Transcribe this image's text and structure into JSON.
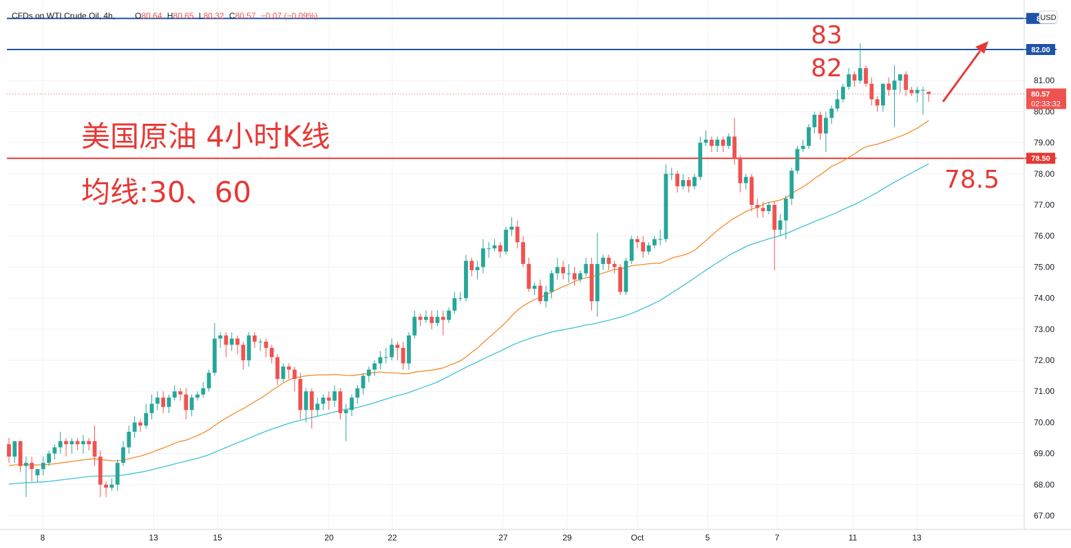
{
  "header": {
    "title": "CFDs on WTI Crude Oil, 4h,",
    "o_label": "O",
    "o": "80.64",
    "h_label": "H",
    "h": "80.65",
    "l_label": "L",
    "l": "80.32",
    "c_label": "C",
    "c": "80.57",
    "change": "−0.07 (−0.09%)"
  },
  "currency_button": "USD",
  "annotations": {
    "title": "美国原油 4小时K线",
    "ma_label": "均线:30、60",
    "level_83": "83",
    "level_82": "82",
    "level_78_5": "78.5"
  },
  "chart_data": {
    "type": "candlestick",
    "title": "CFDs on WTI Crude Oil, 4h",
    "currency": "USD",
    "x_tick_labels": [
      "8",
      "13",
      "15",
      "20",
      "22",
      "27",
      "29",
      "Oct",
      "5",
      "7",
      "11",
      "13"
    ],
    "y_ticks": [
      67.0,
      68.0,
      69.0,
      70.0,
      71.0,
      72.0,
      73.0,
      74.0,
      75.0,
      76.0,
      77.0,
      78.0,
      79.0,
      80.0,
      81.0
    ],
    "y_tick_labels": [
      "67.00",
      "68.00",
      "69.00",
      "70.00",
      "71.00",
      "72.00",
      "73.00",
      "74.00",
      "75.00",
      "76.00",
      "77.00",
      "78.00",
      "79.00",
      "80.00",
      "81.00"
    ],
    "ylim": [
      66.6,
      83.6
    ],
    "grid": true,
    "horizontal_lines": [
      {
        "value": 83.0,
        "label": "83",
        "color": "#1e53a8"
      },
      {
        "value": 82.0,
        "label": "82.00",
        "color": "#1e53a8"
      },
      {
        "value": 78.5,
        "label": "78.50",
        "color": "#e53935"
      }
    ],
    "last_price": {
      "value": 80.57,
      "label": "80.57",
      "countdown": "02:33:32"
    },
    "moving_averages": [
      {
        "period": 30,
        "color": "#f28c28"
      },
      {
        "period": 60,
        "color": "#3cc0d6"
      }
    ],
    "candles": [
      [
        69.3,
        68.9,
        69.5,
        68.7
      ],
      [
        68.9,
        69.4,
        69.4,
        68.7
      ],
      [
        69.4,
        68.6,
        69.4,
        68.4
      ],
      [
        68.6,
        68.7,
        68.9,
        67.6
      ],
      [
        68.7,
        68.5,
        68.9,
        68.1
      ],
      [
        68.3,
        68.5,
        68.5,
        68.1
      ],
      [
        68.5,
        68.7,
        68.9,
        68.3
      ],
      [
        68.7,
        69.0,
        69.1,
        68.6
      ],
      [
        69.0,
        69.2,
        69.3,
        68.8
      ],
      [
        69.2,
        69.4,
        69.7,
        69.0
      ],
      [
        69.4,
        69.3,
        69.5,
        68.9
      ],
      [
        69.3,
        69.4,
        69.5,
        69.0
      ],
      [
        69.4,
        69.3,
        69.5,
        69.1
      ],
      [
        69.3,
        69.4,
        69.6,
        69.0
      ],
      [
        69.4,
        69.3,
        69.5,
        69.1
      ],
      [
        69.4,
        68.9,
        69.9,
        68.6
      ],
      [
        68.9,
        68.0,
        69.1,
        67.6
      ],
      [
        68.0,
        67.9,
        68.1,
        67.6
      ],
      [
        67.9,
        68.0,
        68.2,
        67.8
      ],
      [
        68.0,
        68.7,
        68.8,
        67.8
      ],
      [
        68.7,
        69.2,
        69.4,
        68.6
      ],
      [
        69.2,
        69.7,
        69.9,
        69.0
      ],
      [
        69.7,
        70.0,
        70.2,
        69.5
      ],
      [
        70.0,
        69.9,
        70.1,
        69.7
      ],
      [
        69.9,
        70.3,
        70.6,
        69.8
      ],
      [
        70.3,
        70.6,
        70.9,
        70.1
      ],
      [
        70.6,
        70.8,
        71.0,
        70.4
      ],
      [
        70.8,
        70.5,
        71.0,
        70.3
      ],
      [
        70.5,
        70.8,
        70.9,
        70.3
      ],
      [
        70.8,
        71.0,
        71.2,
        70.7
      ],
      [
        71.0,
        70.9,
        71.1,
        70.7
      ],
      [
        70.9,
        70.4,
        71.1,
        70.1
      ],
      [
        70.4,
        70.8,
        70.9,
        70.2
      ],
      [
        70.8,
        70.9,
        71.0,
        70.7
      ],
      [
        70.9,
        71.1,
        71.3,
        70.8
      ],
      [
        71.1,
        71.6,
        71.7,
        71.0
      ],
      [
        71.6,
        72.7,
        73.2,
        71.5
      ],
      [
        72.7,
        72.8,
        72.9,
        72.4
      ],
      [
        72.8,
        72.5,
        72.9,
        72.1
      ],
      [
        72.5,
        72.7,
        72.9,
        72.3
      ],
      [
        72.7,
        72.5,
        72.8,
        72.2
      ],
      [
        72.5,
        72.0,
        72.6,
        71.7
      ],
      [
        72.0,
        72.8,
        72.9,
        71.8
      ],
      [
        72.8,
        72.6,
        72.9,
        72.4
      ],
      [
        72.6,
        72.6,
        72.7,
        72.3
      ],
      [
        72.6,
        72.4,
        72.7,
        72.1
      ],
      [
        72.4,
        72.1,
        72.5,
        71.9
      ],
      [
        72.1,
        71.4,
        72.2,
        71.2
      ],
      [
        71.4,
        71.8,
        71.9,
        71.3
      ],
      [
        71.8,
        71.7,
        71.9,
        71.4
      ],
      [
        71.7,
        71.4,
        71.8,
        71.0
      ],
      [
        71.4,
        70.4,
        71.6,
        70.1
      ],
      [
        70.4,
        71.0,
        71.1,
        70.0
      ],
      [
        71.0,
        70.4,
        71.1,
        69.8
      ],
      [
        70.4,
        70.6,
        70.8,
        70.2
      ],
      [
        70.6,
        70.8,
        70.9,
        70.4
      ],
      [
        70.8,
        70.7,
        71.0,
        70.4
      ],
      [
        70.7,
        71.0,
        71.2,
        70.5
      ],
      [
        71.0,
        70.3,
        71.1,
        70.1
      ],
      [
        70.3,
        70.4,
        70.6,
        69.4
      ],
      [
        70.4,
        70.8,
        70.9,
        70.2
      ],
      [
        70.8,
        71.1,
        71.2,
        70.6
      ],
      [
        71.1,
        71.5,
        71.6,
        70.9
      ],
      [
        71.5,
        71.7,
        71.8,
        71.3
      ],
      [
        71.7,
        71.9,
        72.0,
        71.5
      ],
      [
        71.9,
        72.1,
        72.3,
        71.7
      ],
      [
        72.1,
        72.1,
        72.4,
        71.9
      ],
      [
        72.1,
        72.5,
        72.7,
        72.0
      ],
      [
        72.5,
        72.4,
        72.6,
        72.0
      ],
      [
        72.4,
        71.9,
        72.6,
        71.7
      ],
      [
        71.9,
        72.8,
        72.9,
        71.7
      ],
      [
        72.8,
        73.4,
        73.6,
        72.7
      ],
      [
        73.4,
        73.3,
        73.5,
        73.1
      ],
      [
        73.3,
        73.4,
        73.6,
        73.2
      ],
      [
        73.4,
        73.2,
        73.6,
        73.0
      ],
      [
        73.2,
        73.4,
        73.6,
        73.1
      ],
      [
        73.4,
        73.3,
        73.6,
        72.8
      ],
      [
        73.3,
        73.6,
        73.7,
        73.2
      ],
      [
        73.6,
        74.0,
        74.2,
        73.5
      ],
      [
        74.0,
        74.0,
        74.2,
        73.9
      ],
      [
        74.0,
        75.2,
        75.4,
        73.9
      ],
      [
        75.2,
        74.9,
        75.3,
        74.7
      ],
      [
        74.9,
        75.0,
        75.2,
        74.6
      ],
      [
        75.0,
        75.6,
        75.9,
        74.8
      ],
      [
        75.6,
        75.6,
        75.8,
        75.3
      ],
      [
        75.6,
        75.7,
        75.9,
        75.5
      ],
      [
        75.7,
        75.5,
        75.8,
        75.3
      ],
      [
        75.5,
        76.2,
        76.3,
        75.4
      ],
      [
        76.2,
        76.3,
        76.6,
        76.0
      ],
      [
        76.3,
        75.8,
        76.5,
        75.6
      ],
      [
        75.8,
        75.1,
        76.0,
        75.0
      ],
      [
        75.1,
        74.3,
        75.3,
        74.2
      ],
      [
        74.3,
        74.4,
        74.5,
        74.1
      ],
      [
        74.4,
        73.9,
        74.6,
        73.8
      ],
      [
        73.9,
        74.2,
        74.4,
        73.7
      ],
      [
        74.2,
        74.8,
        74.9,
        74.0
      ],
      [
        74.8,
        75.0,
        75.3,
        74.6
      ],
      [
        75.0,
        74.8,
        75.2,
        74.6
      ],
      [
        74.8,
        74.8,
        75.1,
        74.5
      ],
      [
        74.8,
        74.6,
        75.0,
        74.4
      ],
      [
        74.6,
        74.8,
        74.9,
        74.5
      ],
      [
        74.8,
        75.1,
        75.3,
        74.7
      ],
      [
        75.1,
        73.9,
        75.3,
        73.6
      ],
      [
        73.9,
        75.1,
        76.1,
        73.4
      ],
      [
        75.1,
        75.3,
        75.4,
        74.9
      ],
      [
        75.3,
        75.1,
        75.4,
        74.9
      ],
      [
        75.1,
        75.0,
        75.2,
        74.8
      ],
      [
        75.0,
        74.2,
        75.1,
        74.1
      ],
      [
        74.2,
        75.2,
        75.3,
        74.1
      ],
      [
        75.2,
        75.9,
        76.0,
        75.1
      ],
      [
        75.9,
        75.8,
        76.0,
        75.6
      ],
      [
        75.8,
        75.5,
        76.0,
        75.3
      ],
      [
        75.5,
        75.7,
        75.8,
        75.4
      ],
      [
        75.7,
        75.9,
        76.0,
        75.6
      ],
      [
        75.9,
        75.9,
        76.2,
        75.7
      ],
      [
        75.9,
        78.0,
        78.3,
        75.8
      ],
      [
        78.0,
        78.0,
        78.2,
        77.8
      ],
      [
        78.0,
        77.6,
        78.1,
        77.4
      ],
      [
        77.6,
        77.8,
        78.0,
        77.5
      ],
      [
        77.8,
        77.6,
        77.9,
        77.4
      ],
      [
        77.6,
        77.9,
        78.0,
        77.5
      ],
      [
        77.9,
        79.0,
        79.2,
        77.8
      ],
      [
        79.0,
        79.1,
        79.4,
        78.9
      ],
      [
        79.1,
        78.9,
        79.2,
        78.7
      ],
      [
        78.9,
        79.1,
        79.2,
        78.7
      ],
      [
        79.1,
        78.9,
        79.2,
        78.7
      ],
      [
        78.9,
        79.2,
        79.3,
        78.8
      ],
      [
        79.2,
        78.5,
        79.8,
        78.3
      ],
      [
        78.5,
        77.7,
        78.6,
        77.4
      ],
      [
        77.7,
        77.9,
        78.0,
        77.5
      ],
      [
        77.9,
        77.0,
        78.0,
        76.8
      ],
      [
        77.0,
        76.9,
        77.2,
        76.6
      ],
      [
        76.9,
        76.8,
        77.1,
        76.6
      ],
      [
        76.8,
        77.0,
        77.1,
        76.7
      ],
      [
        77.0,
        76.2,
        77.1,
        74.9
      ],
      [
        76.2,
        76.5,
        76.7,
        76.0
      ],
      [
        76.5,
        77.2,
        77.3,
        75.9
      ],
      [
        77.2,
        78.1,
        78.2,
        77.0
      ],
      [
        78.1,
        78.8,
        78.9,
        78.0
      ],
      [
        78.8,
        78.9,
        79.1,
        78.7
      ],
      [
        78.9,
        79.5,
        79.6,
        78.8
      ],
      [
        79.5,
        79.9,
        80.0,
        79.3
      ],
      [
        79.9,
        79.3,
        80.0,
        79.1
      ],
      [
        79.3,
        79.8,
        80.0,
        78.7
      ],
      [
        79.8,
        80.1,
        80.2,
        79.6
      ],
      [
        80.1,
        80.4,
        80.7,
        80.0
      ],
      [
        80.4,
        80.8,
        80.9,
        80.3
      ],
      [
        80.8,
        81.2,
        81.4,
        80.7
      ],
      [
        81.2,
        81.0,
        81.3,
        80.8
      ],
      [
        81.0,
        81.4,
        82.2,
        80.9
      ],
      [
        81.4,
        80.9,
        81.5,
        80.8
      ],
      [
        80.9,
        80.4,
        81.1,
        80.2
      ],
      [
        80.4,
        80.2,
        80.5,
        80.0
      ],
      [
        80.2,
        80.9,
        80.9,
        80.0
      ],
      [
        80.9,
        80.7,
        81.1,
        80.5
      ],
      [
        80.7,
        81.0,
        81.5,
        79.5
      ],
      [
        81.0,
        81.2,
        81.2,
        80.6
      ],
      [
        81.2,
        80.7,
        81.3,
        80.5
      ],
      [
        80.7,
        80.6,
        80.8,
        80.5
      ],
      [
        80.6,
        80.7,
        80.8,
        80.3
      ],
      [
        80.7,
        80.7,
        80.8,
        79.9
      ],
      [
        80.64,
        80.57,
        80.65,
        80.32
      ]
    ],
    "candle_fields": [
      "open",
      "close",
      "high",
      "low"
    ],
    "up_color": "#26a69a",
    "down_color": "#ef5350"
  }
}
